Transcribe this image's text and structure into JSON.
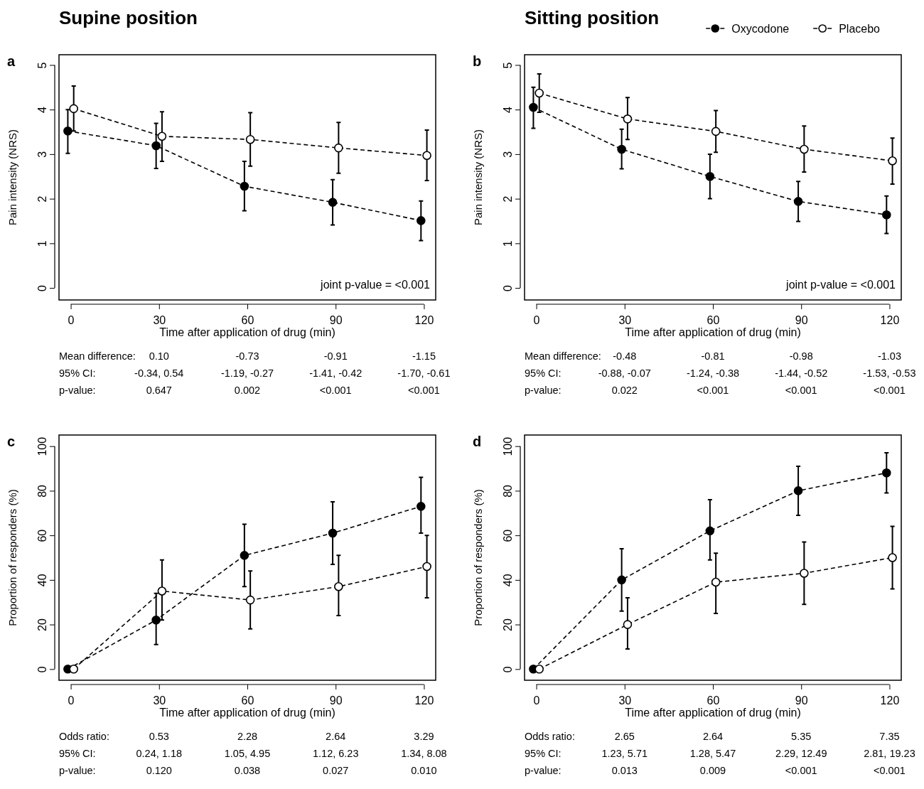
{
  "chart_data": [
    {
      "type": "line",
      "title": "Supine position",
      "subtitle": "a",
      "xlabel": "Time after application of drug (min)",
      "ylabel": "Pain intensity (NRS)",
      "xlim": [
        -4,
        124
      ],
      "xticks": [
        0,
        30,
        60,
        90,
        120
      ],
      "ylim": [
        -0.27,
        5.23
      ],
      "yticks": [
        0,
        1,
        2,
        3,
        4,
        5
      ],
      "grid": false,
      "legend": false,
      "marker": "circle",
      "line_style": "dashed",
      "series": [
        {
          "color": "#000000",
          "x": [
            -1,
            29,
            59,
            89,
            119
          ],
          "values": [
            3.52,
            3.19,
            2.28,
            1.92,
            1.51
          ],
          "errors": [
            [
              3.02,
              4.0
            ],
            [
              2.68,
              3.69
            ],
            [
              1.73,
              2.84
            ],
            [
              1.41,
              2.43
            ],
            [
              1.06,
              1.95
            ]
          ]
        },
        {
          "color": "#000000",
          "x": [
            1,
            31,
            61,
            91,
            121
          ],
          "values": [
            4.02,
            3.4,
            3.33,
            3.14,
            2.97
          ],
          "errors": [
            [
              3.52,
              4.53
            ],
            [
              2.84,
              3.95
            ],
            [
              2.73,
              3.93
            ],
            [
              2.57,
              3.71
            ],
            [
              2.41,
              3.54
            ]
          ]
        }
      ],
      "annotations": [
        "joint p-value = <0.001",
        "Mean difference:",
        "0.10",
        "-0.73",
        "-0.91",
        "-1.15",
        "95% CI:",
        "-0.34, 0.54",
        "-1.19, -0.27",
        "-1.41, -0.42",
        "-1.70, -0.61",
        "p-value:",
        "0.647",
        "0.002",
        "<0.001",
        "<0.001"
      ]
    },
    {
      "type": "line",
      "title": "Sitting position",
      "subtitle": "b",
      "xlabel": "Time after application of drug (min)",
      "ylabel": "Pain intensity (NRS)",
      "xlim": [
        -4,
        124
      ],
      "xticks": [
        0,
        30,
        60,
        90,
        120
      ],
      "ylim": [
        -0.27,
        5.23
      ],
      "yticks": [
        0,
        1,
        2,
        3,
        4,
        5
      ],
      "grid": false,
      "legend": "top right",
      "marker": "circle",
      "line_style": "dashed",
      "series": [
        {
          "name": "Oxycodone",
          "color": "#000000",
          "x": [
            -1,
            29,
            59,
            89,
            119
          ],
          "values": [
            4.05,
            3.11,
            2.5,
            1.94,
            1.64
          ],
          "errors": [
            [
              3.58,
              4.5
            ],
            [
              2.67,
              3.56
            ],
            [
              2.0,
              3.0
            ],
            [
              1.49,
              2.39
            ],
            [
              1.22,
              2.06
            ]
          ]
        },
        {
          "name": "Placebo",
          "color": "#000000",
          "x": [
            1,
            31,
            61,
            91,
            121
          ],
          "values": [
            4.37,
            3.79,
            3.51,
            3.11,
            2.85
          ],
          "errors": [
            [
              3.94,
              4.8
            ],
            [
              3.33,
              4.27
            ],
            [
              3.04,
              3.98
            ],
            [
              2.6,
              3.63
            ],
            [
              2.33,
              3.36
            ]
          ]
        }
      ],
      "annotations": [
        "joint p-value = <0.001",
        "Mean difference:",
        "-0.48",
        "-0.81",
        "-0.98",
        "-1.03",
        "95% CI:",
        "-0.88, -0.07",
        "-1.24, -0.38",
        "-1.44, -0.52",
        "-1.53, -0.53",
        "p-value:",
        "0.022",
        "<0.001",
        "<0.001",
        "<0.001"
      ]
    },
    {
      "type": "line",
      "title": "c",
      "xlabel": "Time after application of drug (min)",
      "ylabel": "Proportion of responders (%)",
      "xlim": [
        -4,
        124
      ],
      "xticks": [
        0,
        30,
        60,
        90,
        120
      ],
      "ylim": [
        -5,
        105
      ],
      "yticks": [
        0,
        20,
        40,
        60,
        80,
        100
      ],
      "grid": false,
      "legend": false,
      "marker": "circle",
      "line_style": "dashed",
      "series": [
        {
          "color": "#000000",
          "x": [
            -1,
            29,
            59,
            89,
            119
          ],
          "values": [
            0,
            22,
            51,
            61,
            73
          ],
          "errors": [
            null,
            [
              11,
              34
            ],
            [
              37,
              65
            ],
            [
              47,
              75
            ],
            [
              61,
              86
            ]
          ]
        },
        {
          "color": "#000000",
          "x": [
            1,
            31,
            61,
            91,
            121
          ],
          "values": [
            0,
            35,
            31,
            37,
            46
          ],
          "errors": [
            null,
            [
              22,
              49
            ],
            [
              18,
              44
            ],
            [
              24,
              51
            ],
            [
              32,
              60
            ]
          ]
        }
      ],
      "annotations": [
        "Odds ratio:",
        "0.53",
        "2.28",
        "2.64",
        "3.29",
        "95% CI:",
        "0.24, 1.18",
        "1.05, 4.95",
        "1.12, 6.23",
        "1.34, 8.08",
        "p-value:",
        "0.120",
        "0.038",
        "0.027",
        "0.010"
      ]
    },
    {
      "type": "line",
      "title": "d",
      "xlabel": "Time after application of drug (min)",
      "ylabel": "Proportion of responders (%)",
      "xlim": [
        -4,
        124
      ],
      "xticks": [
        0,
        30,
        60,
        90,
        120
      ],
      "ylim": [
        -5,
        105
      ],
      "yticks": [
        0,
        20,
        40,
        60,
        80,
        100
      ],
      "grid": false,
      "legend": false,
      "marker": "circle",
      "line_style": "dashed",
      "series": [
        {
          "color": "#000000",
          "x": [
            -1,
            29,
            59,
            89,
            119
          ],
          "values": [
            0,
            40,
            62,
            80,
            88
          ],
          "errors": [
            null,
            [
              26,
              54
            ],
            [
              49,
              76
            ],
            [
              69,
              91
            ],
            [
              79,
              97
            ]
          ]
        },
        {
          "color": "#000000",
          "x": [
            1,
            31,
            61,
            91,
            121
          ],
          "values": [
            0,
            20,
            39,
            43,
            50
          ],
          "errors": [
            null,
            [
              9,
              32
            ],
            [
              25,
              52
            ],
            [
              29,
              57
            ],
            [
              36,
              64
            ]
          ]
        }
      ],
      "annotations": [
        "Odds ratio:",
        "2.65",
        "2.64",
        "5.35",
        "7.35",
        "95% CI:",
        "1.23, 5.71",
        "1.28, 5.47",
        "2.29, 12.49",
        "2.81, 19.23",
        "p-value:",
        "0.013",
        "0.009",
        "<0.001",
        "<0.001"
      ]
    }
  ]
}
